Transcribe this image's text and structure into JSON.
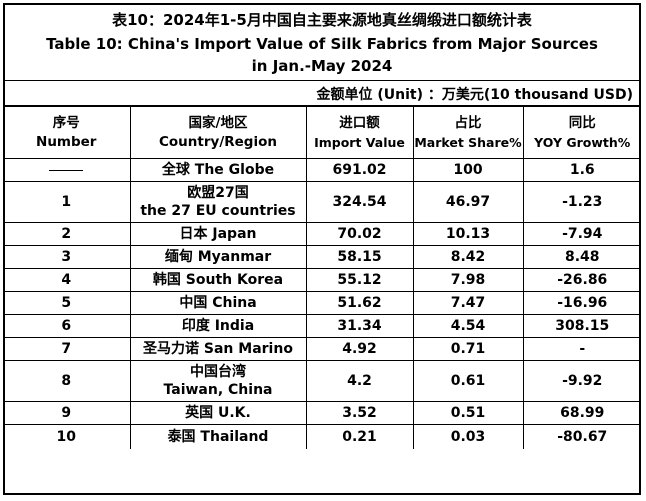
{
  "title": {
    "zh": "表10：2024年1-5月中国自主要来源地真丝绸缎进口额统计表",
    "en_line1": "Table 10: China's Import Value of Silk Fabrics from Major Sources",
    "en_line2": "in Jan.-May 2024"
  },
  "unit": "金额单位 (Unit) ：万美元(10 thousand USD)",
  "headers": [
    {
      "zh": "序号",
      "en": "Number"
    },
    {
      "zh": "国家/地区",
      "en": "Country/Region"
    },
    {
      "zh": "进口额",
      "en": "Import Value"
    },
    {
      "zh": "占比",
      "en": "Market Share%"
    },
    {
      "zh": "同比",
      "en": "YOY Growth%"
    }
  ],
  "rows": [
    {
      "no": "——",
      "country_l1": "全球 The Globe",
      "country_l2": "",
      "import": "691.02",
      "share": "100",
      "yoy": "1.6"
    },
    {
      "no": "1",
      "country_l1": "欧盟27国",
      "country_l2": "the 27 EU countries",
      "import": "324.54",
      "share": "46.97",
      "yoy": "-1.23"
    },
    {
      "no": "2",
      "country_l1": "日本 Japan",
      "country_l2": "",
      "import": "70.02",
      "share": "10.13",
      "yoy": "-7.94"
    },
    {
      "no": "3",
      "country_l1": "缅甸 Myanmar",
      "country_l2": "",
      "import": "58.15",
      "share": "8.42",
      "yoy": "8.48"
    },
    {
      "no": "4",
      "country_l1": "韩国 South Korea",
      "country_l2": "",
      "import": "55.12",
      "share": "7.98",
      "yoy": "-26.86"
    },
    {
      "no": "5",
      "country_l1": "中国 China",
      "country_l2": "",
      "import": "51.62",
      "share": "7.47",
      "yoy": "-16.96"
    },
    {
      "no": "6",
      "country_l1": "印度 India",
      "country_l2": "",
      "import": "31.34",
      "share": "4.54",
      "yoy": "308.15"
    },
    {
      "no": "7",
      "country_l1": "圣马力诺 San Marino",
      "country_l2": "",
      "import": "4.92",
      "share": "0.71",
      "yoy": "-"
    },
    {
      "no": "8",
      "country_l1": "中国台湾",
      "country_l2": "Taiwan, China",
      "import": "4.2",
      "share": "0.61",
      "yoy": "-9.92"
    },
    {
      "no": "9",
      "country_l1": "英国 U.K.",
      "country_l2": "",
      "import": "3.52",
      "share": "0.51",
      "yoy": "68.99"
    },
    {
      "no": "10",
      "country_l1": "泰国 Thailand",
      "country_l2": "",
      "import": "0.21",
      "share": "0.03",
      "yoy": "-80.67"
    }
  ]
}
